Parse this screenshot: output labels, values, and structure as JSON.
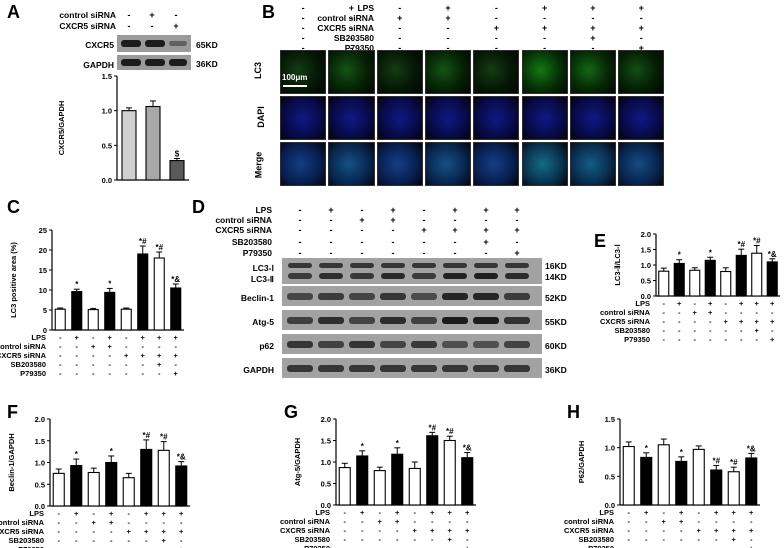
{
  "panels": {
    "A": {
      "letter": "A",
      "rows": [
        {
          "label": "control siRNA",
          "signs": [
            "-",
            "+",
            "-"
          ]
        },
        {
          "label": "CXCR5 siRNA",
          "signs": [
            "-",
            "-",
            "+"
          ]
        }
      ],
      "blots": [
        {
          "name": "CXCR5",
          "kd": "65KD",
          "intensity": [
            1.0,
            1.0,
            0.35
          ]
        },
        {
          "name": "GAPDH",
          "kd": "36KD",
          "intensity": [
            1.0,
            1.0,
            1.0
          ]
        }
      ]
    },
    "B": {
      "letter": "B",
      "rows": [
        {
          "label": "LPS",
          "signs": [
            "-",
            "+",
            "-",
            "+",
            "-",
            "+",
            "+",
            "+"
          ]
        },
        {
          "label": "control siRNA",
          "signs": [
            "-",
            "-",
            "+",
            "+",
            "-",
            "-",
            "-",
            "-"
          ]
        },
        {
          "label": "CXCR5 siRNA",
          "signs": [
            "-",
            "-",
            "-",
            "-",
            "+",
            "+",
            "+",
            "+"
          ]
        },
        {
          "label": "SB203580",
          "signs": [
            "-",
            "-",
            "-",
            "-",
            "-",
            "-",
            "+",
            "-"
          ]
        },
        {
          "label": "P79350",
          "signs": [
            "-",
            "-",
            "-",
            "-",
            "-",
            "-",
            "-",
            "+"
          ]
        }
      ],
      "image_rows": [
        "LC3",
        "DAPI",
        "Merge"
      ],
      "scale_bar": "100μm",
      "lc3_intensity": [
        0.25,
        0.45,
        0.25,
        0.45,
        0.25,
        0.75,
        0.6,
        0.4
      ]
    },
    "C": {
      "letter": "C"
    },
    "D": {
      "letter": "D",
      "rows": [
        {
          "label": "LPS",
          "signs": [
            "-",
            "+",
            "-",
            "+",
            "-",
            "+",
            "+",
            "+"
          ]
        },
        {
          "label": "control siRNA",
          "signs": [
            "-",
            "-",
            "+",
            "+",
            "-",
            "-",
            "-",
            "-"
          ]
        },
        {
          "label": "CXCR5 siRNA",
          "signs": [
            "-",
            "-",
            "-",
            "-",
            "+",
            "+",
            "+",
            "+"
          ]
        },
        {
          "label": "SB203580",
          "signs": [
            "-",
            "-",
            "-",
            "-",
            "-",
            "-",
            "+",
            "-"
          ]
        },
        {
          "label": "P79350",
          "signs": [
            "-",
            "-",
            "-",
            "-",
            "-",
            "-",
            "-",
            "+"
          ]
        }
      ],
      "blots": [
        {
          "name": "LC3-Ⅰ",
          "name2": "LC3-Ⅱ",
          "kd": "16KD",
          "kd2": "14KD",
          "double": true
        },
        {
          "name": "Beclin-1",
          "kd": "52KD"
        },
        {
          "name": "Atg-5",
          "kd": "55KD"
        },
        {
          "name": "p62",
          "kd": "60KD"
        },
        {
          "name": "GAPDH",
          "kd": "36KD"
        }
      ]
    },
    "E": {
      "letter": "E"
    },
    "F": {
      "letter": "F"
    },
    "G": {
      "letter": "G"
    },
    "H": {
      "letter": "H"
    }
  },
  "treatment_rows": [
    {
      "label": "LPS",
      "signs": [
        "-",
        "+",
        "-",
        "+",
        "-",
        "+",
        "+",
        "+"
      ]
    },
    {
      "label": "control siRNA",
      "signs": [
        "-",
        "-",
        "+",
        "+",
        "-",
        "-",
        "-",
        "-"
      ]
    },
    {
      "label": "CXCR5 siRNA",
      "signs": [
        "-",
        "-",
        "-",
        "-",
        "+",
        "+",
        "+",
        "+"
      ]
    },
    {
      "label": "SB203580",
      "signs": [
        "-",
        "-",
        "-",
        "-",
        "-",
        "-",
        "+",
        "-"
      ]
    },
    {
      "label": "P79350",
      "signs": [
        "-",
        "-",
        "-",
        "-",
        "-",
        "-",
        "-",
        "+"
      ]
    }
  ],
  "chart_data": [
    {
      "panel": "A",
      "type": "bar",
      "ylabel": "CXCR5/GAPDH",
      "ylim": [
        0,
        1.5
      ],
      "yticks": [
        "0.0",
        "0.5",
        "1.0",
        "1.5"
      ],
      "values": [
        1.0,
        1.06,
        0.28
      ],
      "errors": [
        0.04,
        0.08,
        0.03
      ],
      "colors": [
        "#d0d0d0",
        "#a8a8a8",
        "#5a5a5a"
      ],
      "marks": [
        "",
        "",
        "$"
      ]
    },
    {
      "panel": "C",
      "type": "bar",
      "ylabel": "LC3 positive area (%)",
      "ylim": [
        0,
        25
      ],
      "yticks": [
        "0",
        "5",
        "10",
        "15",
        "20",
        "25"
      ],
      "values": [
        5.2,
        9.6,
        5.1,
        9.4,
        5.2,
        19.0,
        18.0,
        10.5
      ],
      "errors": [
        0.3,
        0.6,
        0.3,
        1.0,
        0.3,
        2.0,
        1.5,
        1.0
      ],
      "colors": [
        "#ffffff",
        "#000000",
        "#ffffff",
        "#000000",
        "#ffffff",
        "#000000",
        "#ffffff",
        "#000000"
      ],
      "marks": [
        "",
        "*",
        "",
        "*",
        "",
        "*#",
        "*#",
        "*&"
      ]
    },
    {
      "panel": "E",
      "type": "bar",
      "ylabel": "LC3-Ⅱ/LC3-Ⅰ",
      "ylim": [
        0,
        2.0
      ],
      "yticks": [
        "0.0",
        "0.5",
        "1.0",
        "1.5",
        "2.0"
      ],
      "values": [
        0.8,
        1.05,
        0.83,
        1.15,
        0.79,
        1.31,
        1.38,
        1.1
      ],
      "errors": [
        0.1,
        0.12,
        0.08,
        0.1,
        0.12,
        0.2,
        0.25,
        0.1
      ],
      "colors": [
        "#ffffff",
        "#000000",
        "#ffffff",
        "#000000",
        "#ffffff",
        "#000000",
        "#ffffff",
        "#000000"
      ],
      "marks": [
        "",
        "*",
        "",
        "*",
        "",
        "*#",
        "*#",
        "*&"
      ]
    },
    {
      "panel": "F",
      "type": "bar",
      "ylabel": "Beclin-1/GAPDH",
      "ylim": [
        0,
        2.0
      ],
      "yticks": [
        "0.0",
        "0.5",
        "1.0",
        "1.5",
        "2.0"
      ],
      "values": [
        0.75,
        0.93,
        0.77,
        1.0,
        0.65,
        1.3,
        1.28,
        0.92
      ],
      "errors": [
        0.1,
        0.15,
        0.1,
        0.15,
        0.1,
        0.22,
        0.2,
        0.1
      ],
      "colors": [
        "#ffffff",
        "#000000",
        "#ffffff",
        "#000000",
        "#ffffff",
        "#000000",
        "#ffffff",
        "#000000"
      ],
      "marks": [
        "",
        "*",
        "",
        "*",
        "",
        "*#",
        "*#",
        "*&"
      ]
    },
    {
      "panel": "G",
      "type": "bar",
      "ylabel": "Atg-5/GAPDH",
      "ylim": [
        0,
        2.0
      ],
      "yticks": [
        "0.0",
        "0.5",
        "1.0",
        "1.5",
        "2.0"
      ],
      "values": [
        0.87,
        1.14,
        0.8,
        1.18,
        0.85,
        1.61,
        1.5,
        1.1
      ],
      "errors": [
        0.1,
        0.12,
        0.08,
        0.15,
        0.15,
        0.08,
        0.1,
        0.12
      ],
      "colors": [
        "#ffffff",
        "#000000",
        "#ffffff",
        "#000000",
        "#ffffff",
        "#000000",
        "#ffffff",
        "#000000"
      ],
      "marks": [
        "",
        "*",
        "",
        "*",
        "",
        "*#",
        "*#",
        "*&"
      ]
    },
    {
      "panel": "H",
      "type": "bar",
      "ylabel": "P62/GAPDH",
      "ylim": [
        0,
        1.5
      ],
      "yticks": [
        "0.0",
        "0.5",
        "1.0",
        "1.5"
      ],
      "values": [
        1.02,
        0.83,
        1.05,
        0.76,
        0.97,
        0.61,
        0.58,
        0.82
      ],
      "errors": [
        0.08,
        0.08,
        0.1,
        0.08,
        0.06,
        0.08,
        0.08,
        0.08
      ],
      "colors": [
        "#ffffff",
        "#000000",
        "#ffffff",
        "#000000",
        "#ffffff",
        "#000000",
        "#ffffff",
        "#000000"
      ],
      "marks": [
        "",
        "*",
        "",
        "*",
        "",
        "*#",
        "*#",
        "*&"
      ]
    }
  ]
}
